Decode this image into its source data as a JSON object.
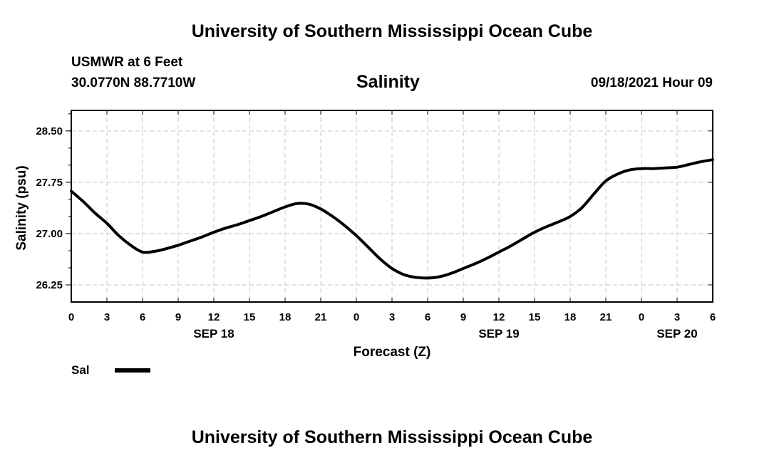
{
  "header": {
    "title_top": "University of Southern Mississippi Ocean Cube",
    "station": "USMWR at 6 Feet",
    "coords": "30.0770N  88.7710W",
    "datetime": "09/18/2021 Hour 09"
  },
  "footer": {
    "title_bottom": "University of Southern Mississippi Ocean Cube"
  },
  "legend": {
    "label": "Sal"
  },
  "colors": {
    "line": "#000000",
    "grid": "#c8c8c8",
    "axis": "#000000"
  },
  "chart_data": {
    "type": "line",
    "title": "Salinity",
    "xlabel": "Forecast (Z)",
    "ylabel": "Salinity (psu)",
    "x_tick_labels": [
      "0",
      "3",
      "6",
      "9",
      "12",
      "15",
      "18",
      "21",
      "0",
      "3",
      "6",
      "9",
      "12",
      "15",
      "18",
      "21",
      "0",
      "3",
      "6"
    ],
    "date_labels": [
      {
        "label": "SEP 18",
        "at_hour": 12
      },
      {
        "label": "SEP 19",
        "at_hour": 36
      },
      {
        "label": "SEP 20",
        "at_hour": 51
      }
    ],
    "xlim": [
      0,
      54
    ],
    "ylim": [
      26.0,
      28.8
    ],
    "y_ticks": [
      26.25,
      27.0,
      27.75,
      28.5
    ],
    "y_tick_labels": [
      "26.25",
      "27.00",
      "27.75",
      "28.50"
    ],
    "grid": true,
    "series": [
      {
        "name": "Sal",
        "x": [
          0,
          1,
          2,
          3,
          4,
          5,
          6,
          7,
          8,
          9,
          10,
          11,
          12,
          13,
          14,
          15,
          16,
          17,
          18,
          19,
          20,
          21,
          22,
          23,
          24,
          25,
          26,
          27,
          28,
          29,
          30,
          31,
          32,
          33,
          34,
          35,
          36,
          37,
          38,
          39,
          40,
          41,
          42,
          43,
          44,
          45,
          46,
          47,
          48,
          49,
          50,
          51,
          52,
          53,
          54
        ],
        "values": [
          27.62,
          27.47,
          27.3,
          27.15,
          26.97,
          26.83,
          26.73,
          26.74,
          26.78,
          26.83,
          26.89,
          26.95,
          27.02,
          27.08,
          27.13,
          27.19,
          27.25,
          27.32,
          27.39,
          27.44,
          27.43,
          27.36,
          27.25,
          27.12,
          26.97,
          26.8,
          26.63,
          26.49,
          26.4,
          26.36,
          26.35,
          26.37,
          26.42,
          26.49,
          26.56,
          26.64,
          26.73,
          26.82,
          26.92,
          27.02,
          27.1,
          27.17,
          27.25,
          27.38,
          27.58,
          27.77,
          27.87,
          27.93,
          27.95,
          27.95,
          27.96,
          27.97,
          28.01,
          28.05,
          28.08
        ]
      }
    ]
  }
}
